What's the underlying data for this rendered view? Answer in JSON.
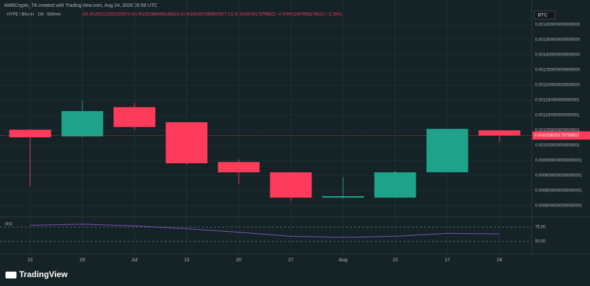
{
  "header": {
    "credit": "AMBCrypto_TA created with TradingView.com, Aug 24, 2026 05:58 UTC",
    "symbol": "HYPE / Bitcoin · 1W · Bitfinex",
    "ohlc": "O0.001052122092029374 H0.001052884596196419 L0.001010620950620677 C0.001033035178795822 −0.000021947693178823 (−2.16%)",
    "currency": "BTC",
    "brand": "TradingView"
  },
  "chart_data": {
    "type": "candlestick",
    "categories": [
      "22",
      "29",
      "Jul",
      "13",
      "20",
      "27",
      "Aug",
      "10",
      "17",
      "24"
    ],
    "series": [
      {
        "name": "open",
        "values": [
          0.001052,
          0.00103,
          0.001127,
          0.001077,
          0.000945,
          0.000911,
          0.000827,
          0.000827,
          0.000911,
          0.00105
        ]
      },
      {
        "name": "high",
        "values": [
          0.001055,
          0.00115,
          0.00114,
          0.001077,
          0.000954,
          0.000911,
          0.000895,
          0.000916,
          0.001055,
          0.00105
        ]
      },
      {
        "name": "low",
        "values": [
          0.000864,
          0.001027,
          0.001052,
          0.000936,
          0.000873,
          0.000816,
          0.000823,
          0.000825,
          0.000911,
          0.001011
        ]
      },
      {
        "name": "close",
        "values": [
          0.001027,
          0.001114,
          0.001061,
          0.000941,
          0.000911,
          0.000827,
          0.000832,
          0.000911,
          0.001055,
          0.001033
        ]
      }
    ],
    "up_color": "#1fa28a",
    "down_color": "#fe3b5a",
    "ylim": [
      0.000766,
      0.001423
    ],
    "yticks": [
      {
        "value": 0.0008,
        "label": "0.0008000000000000001"
      },
      {
        "value": 0.00085,
        "label": "0.0008500000000000001"
      },
      {
        "value": 0.0009,
        "label": "0.0009000000000000001"
      },
      {
        "value": 0.00095,
        "label": "0.0009500000000000001"
      },
      {
        "value": 0.001,
        "label": "0.001000000000000001"
      },
      {
        "value": 0.00105,
        "label": "0.001050000000000001"
      },
      {
        "value": 0.0011,
        "label": "0.001100000000000001"
      },
      {
        "value": 0.00115,
        "label": "0.001150000000000001"
      },
      {
        "value": 0.0012,
        "label": "0.001200000000000000"
      },
      {
        "value": 0.00125,
        "label": "0.001250000000000000"
      },
      {
        "value": 0.0013,
        "label": "0.001300000000000000"
      },
      {
        "value": 0.00135,
        "label": "0.001350000000000000"
      },
      {
        "value": 0.0014,
        "label": "0.001400000000000000"
      }
    ],
    "last_price": {
      "value": 0.001033035178795822,
      "label": "0.001033035178795822"
    },
    "rsi": {
      "name": "RSI",
      "color": "#7e57c2",
      "values": [
        78,
        80,
        77,
        72,
        66,
        59,
        57,
        59,
        64,
        63
      ],
      "ylim": [
        31,
        90.5
      ],
      "yticks": [
        {
          "value": 75,
          "label": "75.00"
        },
        {
          "value": 50,
          "label": "50.00"
        }
      ]
    }
  }
}
